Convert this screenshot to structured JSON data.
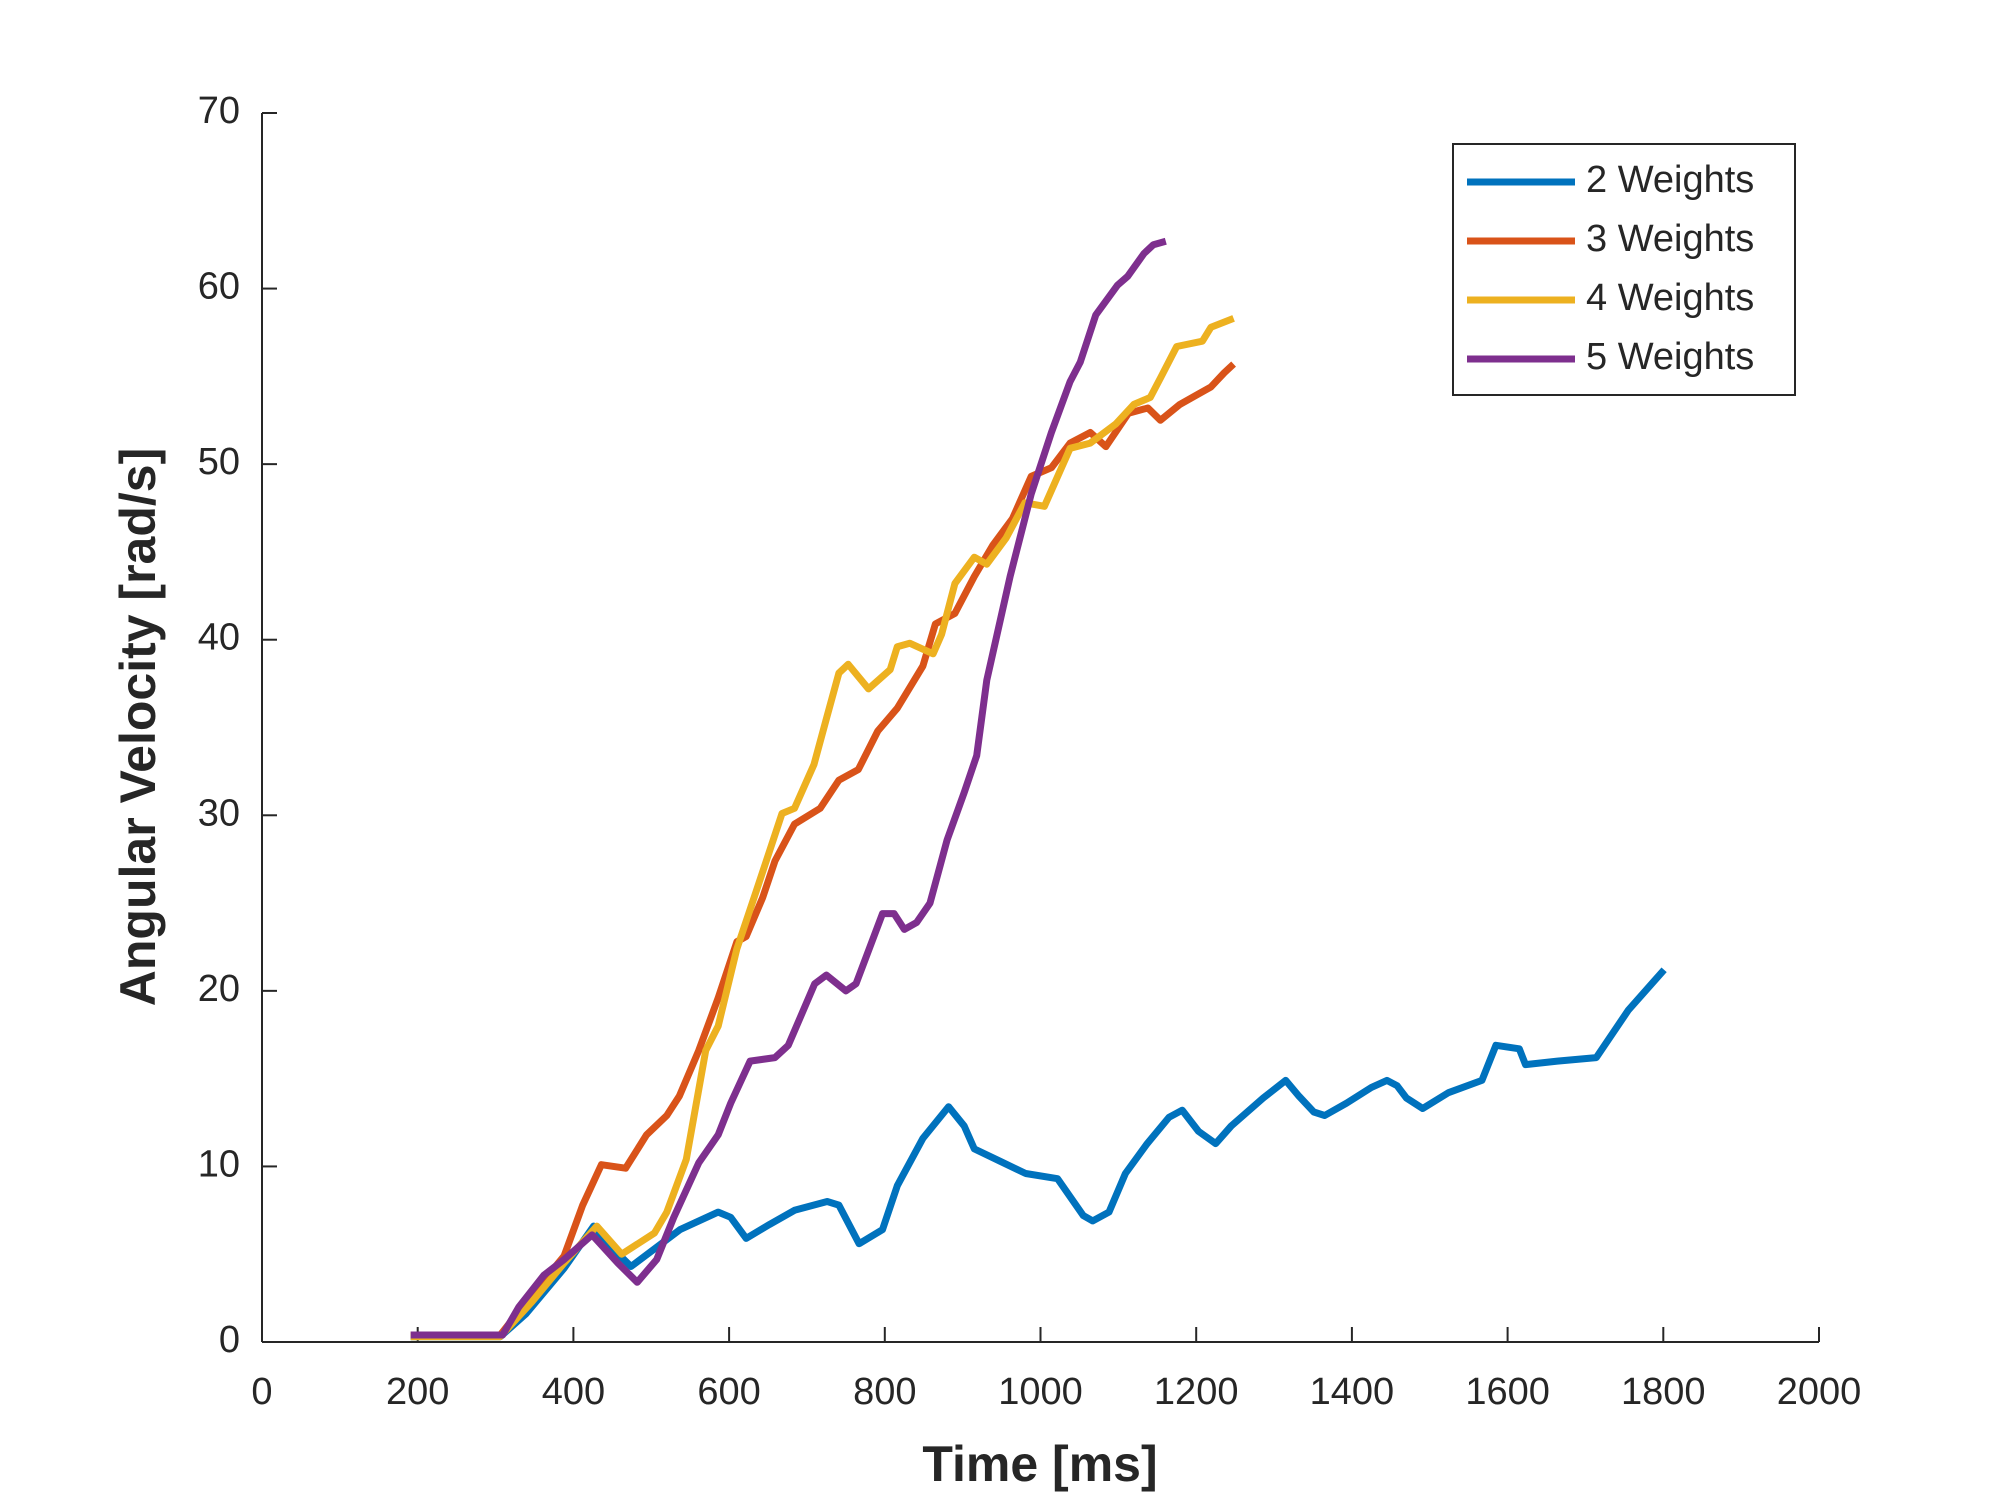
{
  "chart_data": {
    "type": "line",
    "xlabel": "Time [ms]",
    "ylabel": "Angular Velocity [rad/s]",
    "xlim": [
      0,
      2000
    ],
    "xticks": [
      0,
      200,
      400,
      600,
      800,
      1000,
      1200,
      1400,
      1600,
      1800,
      2000
    ],
    "ylim": [
      0,
      70
    ],
    "yticks": [
      0,
      10,
      20,
      30,
      40,
      50,
      60,
      70
    ],
    "grid": false,
    "legend": "upper right",
    "series": [
      {
        "name": "2 Weights",
        "color": "#0072BD",
        "x": [
          191,
          306,
          339,
          388,
          426,
          451,
          474,
          504,
          537,
          586,
          602,
          622,
          652,
          684,
          726,
          741,
          767,
          797,
          816,
          849,
          882,
          902,
          915,
          948,
          981,
          1022,
          1055,
          1067,
          1088,
          1109,
          1137,
          1165,
          1182,
          1203,
          1225,
          1245,
          1286,
          1315,
          1332,
          1351,
          1365,
          1393,
          1425,
          1445,
          1458,
          1470,
          1491,
          1524,
          1567,
          1585,
          1615,
          1623,
          1664,
          1714,
          1755,
          1801
        ],
        "values": [
          0.3,
          0.3,
          1.6,
          4.2,
          6.6,
          5.3,
          4.3,
          5.3,
          6.4,
          7.4,
          7.1,
          5.9,
          6.7,
          7.5,
          8.0,
          7.8,
          5.6,
          6.4,
          8.9,
          11.6,
          13.4,
          12.3,
          11.0,
          10.3,
          9.6,
          9.3,
          7.2,
          6.9,
          7.4,
          9.6,
          11.3,
          12.8,
          13.2,
          12.0,
          11.3,
          12.3,
          13.9,
          14.9,
          14.0,
          13.1,
          12.9,
          13.6,
          14.5,
          14.9,
          14.6,
          13.9,
          13.3,
          14.2,
          14.9,
          16.9,
          16.7,
          15.8,
          16.0,
          16.2,
          18.9,
          21.2
        ]
      },
      {
        "name": "3 Weights",
        "color": "#D95319",
        "x": [
          191,
          306,
          347,
          388,
          412,
          436,
          467,
          494,
          520,
          536,
          561,
          586,
          610,
          622,
          643,
          659,
          684,
          717,
          741,
          766,
          791,
          816,
          849,
          865,
          890,
          915,
          939,
          964,
          988,
          1014,
          1038,
          1064,
          1084,
          1113,
          1138,
          1154,
          1179,
          1203,
          1219,
          1236,
          1248
        ],
        "values": [
          0.4,
          0.4,
          2.7,
          4.9,
          7.8,
          10.1,
          9.9,
          11.8,
          12.9,
          14.0,
          16.6,
          19.6,
          22.8,
          23.1,
          25.3,
          27.4,
          29.5,
          30.4,
          32.0,
          32.6,
          34.8,
          36.1,
          38.5,
          40.9,
          41.5,
          43.6,
          45.4,
          46.9,
          49.3,
          49.8,
          51.2,
          51.8,
          51.0,
          52.9,
          53.2,
          52.5,
          53.4,
          54.0,
          54.4,
          55.2,
          55.7
        ]
      },
      {
        "name": "4 Weights",
        "color": "#EDB120",
        "x": [
          191,
          306,
          347,
          388,
          430,
          462,
          504,
          520,
          545,
          570,
          586,
          610,
          638,
          668,
          684,
          709,
          725,
          741,
          753,
          779,
          807,
          816,
          832,
          862,
          873,
          890,
          915,
          931,
          956,
          980,
          1005,
          1038,
          1064,
          1097,
          1120,
          1141,
          1154,
          1175,
          1208,
          1219,
          1248
        ],
        "values": [
          0.3,
          0.3,
          2.3,
          4.5,
          6.6,
          5.0,
          6.2,
          7.4,
          10.4,
          16.6,
          18.0,
          22.4,
          26.1,
          30.1,
          30.4,
          32.9,
          35.5,
          38.1,
          38.6,
          37.2,
          38.3,
          39.6,
          39.8,
          39.2,
          40.3,
          43.2,
          44.7,
          44.3,
          45.8,
          47.8,
          47.6,
          50.9,
          51.2,
          52.3,
          53.4,
          53.8,
          54.9,
          56.7,
          57.0,
          57.8,
          58.3
        ]
      },
      {
        "name": "5 Weights",
        "color": "#7E2F8E",
        "x": [
          191,
          309,
          330,
          362,
          388,
          424,
          457,
          482,
          507,
          529,
          561,
          586,
          602,
          627,
          659,
          676,
          710,
          725,
          750,
          763,
          797,
          812,
          825,
          841,
          858,
          880,
          902,
          918,
          931,
          961,
          988,
          1014,
          1038,
          1051,
          1071,
          1099,
          1112,
          1133,
          1145,
          1161
        ],
        "values": [
          0.4,
          0.4,
          2.0,
          3.8,
          4.7,
          6.1,
          4.5,
          3.4,
          4.7,
          7.1,
          10.2,
          11.8,
          13.6,
          16.0,
          16.2,
          16.9,
          20.4,
          20.9,
          20.0,
          20.4,
          24.4,
          24.4,
          23.5,
          23.9,
          25.0,
          28.6,
          31.3,
          33.4,
          37.7,
          43.6,
          48.3,
          51.8,
          54.7,
          55.8,
          58.5,
          60.2,
          60.7,
          62.0,
          62.5,
          62.7
        ]
      }
    ]
  }
}
